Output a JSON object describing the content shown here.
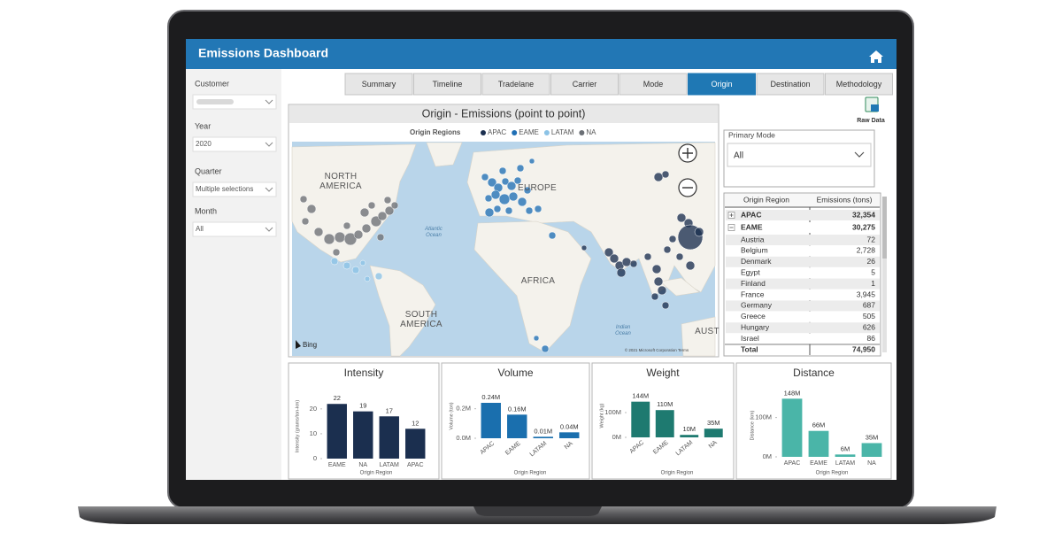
{
  "header": {
    "title": "Emissions Dashboard"
  },
  "filters": [
    {
      "label": "Customer"
    },
    {
      "label": "Year",
      "value": "2020"
    },
    {
      "label": "Quarter",
      "value": "Multiple selections"
    },
    {
      "label": "Month",
      "value": "All"
    }
  ],
  "tabs": {
    "items": [
      "Summary",
      "Timeline",
      "Tradelane",
      "Carrier",
      "Mode",
      "Origin",
      "Destination",
      "Methodology"
    ],
    "active": "Origin"
  },
  "raw_data": "Raw Data",
  "map": {
    "title": "Origin - Emissions (point to point)",
    "legend_title": "Origin Regions",
    "legend": [
      {
        "name": "APAC",
        "color": "#1b2f4f"
      },
      {
        "name": "EAME",
        "color": "#1f6fb5"
      },
      {
        "name": "LATAM",
        "color": "#8cc3e6"
      },
      {
        "name": "NA",
        "color": "#6b6f75"
      }
    ],
    "labels": [
      "NORTH AMERICA",
      "EUROPE",
      "AFRICA",
      "SOUTH AMERICA",
      "AUST",
      "Atlantic Ocean",
      "Indian Ocean"
    ],
    "attribution": "Bing",
    "copyright": "© 2021 Microsoft Corporation Terms"
  },
  "primary_mode": {
    "label": "Primary Mode",
    "value": "All"
  },
  "table": {
    "columns": [
      "Origin Region",
      "Emissions (tons)"
    ],
    "rows": [
      [
        "APAC",
        "32,354"
      ],
      [
        "EAME",
        "30,275"
      ],
      [
        "Austria",
        "72"
      ],
      [
        "Belgium",
        "2,728"
      ],
      [
        "Denmark",
        "26"
      ],
      [
        "Egypt",
        "5"
      ],
      [
        "Finland",
        "1"
      ],
      [
        "France",
        "3,945"
      ],
      [
        "Germany",
        "687"
      ],
      [
        "Greece",
        "505"
      ],
      [
        "Hungary",
        "626"
      ],
      [
        "Israel",
        "86"
      ]
    ],
    "total": [
      "Total",
      "74,950"
    ]
  },
  "charts": [
    {
      "type": "bar",
      "title": "Intensity",
      "y_label": "Intensity (grams/ton-km)",
      "x_label": "Origin Region",
      "categories": [
        "EAME",
        "NA",
        "LATAM",
        "APAC"
      ],
      "values": [
        22,
        19,
        17,
        12
      ],
      "color": "#1b2f4f",
      "ylim": [
        0,
        26
      ],
      "yticks": [
        0,
        10,
        20
      ]
    },
    {
      "type": "bar",
      "title": "Volume",
      "y_label": "Volume (ton)",
      "x_label": "Origin Region",
      "categories": [
        "APAC",
        "EAME",
        "LATAM",
        "NA"
      ],
      "values": [
        240000,
        160000,
        10000,
        40000
      ],
      "value_labels": [
        "0.24M",
        "0.16M",
        "0.01M",
        "0.04M"
      ],
      "color": "#1a6fae",
      "ylim": [
        0,
        300000
      ],
      "yticks": [
        {
          "value": 0,
          "label": "0.0M"
        },
        {
          "value": 200000,
          "label": "0.2M"
        }
      ]
    },
    {
      "type": "bar",
      "title": "Weight",
      "y_label": "Weight (kg)",
      "x_label": "Origin Region",
      "categories": [
        "APAC",
        "EAME",
        "LATAM",
        "NA"
      ],
      "values": [
        144000000,
        110000000,
        10000000,
        35000000
      ],
      "value_labels": [
        "144M",
        "110M",
        "10M",
        "35M"
      ],
      "color": "#1e7a70",
      "ylim": [
        0,
        175000000
      ],
      "yticks": [
        {
          "value": 0,
          "label": "0M"
        },
        {
          "value": 100000000,
          "label": "100M"
        }
      ]
    },
    {
      "type": "bar",
      "title": "Distance",
      "y_label": "Distance (km)",
      "x_label": "Origin Region",
      "categories": [
        "APAC",
        "EAME",
        "LATAM",
        "NA"
      ],
      "values": [
        148000000,
        66000000,
        6000000,
        35000000
      ],
      "value_labels": [
        "148M",
        "66M",
        "6M",
        "35M"
      ],
      "color": "#4ab5a8",
      "ylim": [
        0,
        160000000
      ],
      "yticks": [
        {
          "value": 0,
          "label": "0M"
        },
        {
          "value": 100000000,
          "label": "100M"
        }
      ]
    }
  ]
}
